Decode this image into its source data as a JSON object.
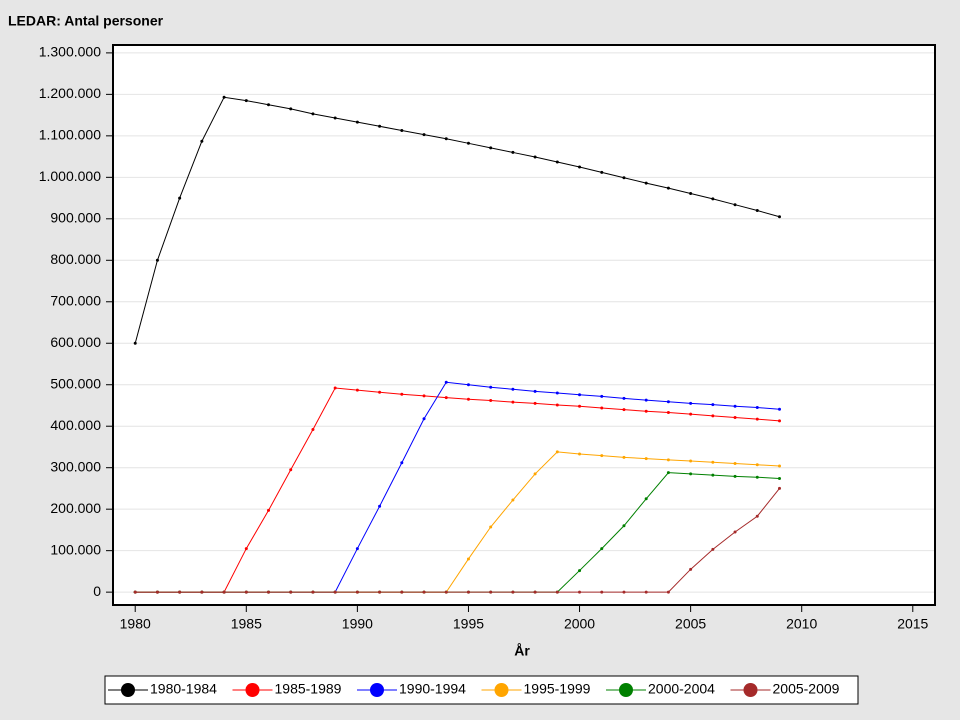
{
  "chart_data": {
    "type": "line",
    "title": "LEDAR: Antal personer",
    "x_label": "År",
    "x": [
      1980,
      1981,
      1982,
      1983,
      1984,
      1985,
      1986,
      1987,
      1988,
      1989,
      1990,
      1991,
      1992,
      1993,
      1994,
      1995,
      1996,
      1997,
      1998,
      1999,
      2000,
      2001,
      2002,
      2003,
      2004,
      2005,
      2006,
      2007,
      2008,
      2009
    ],
    "xlim": [
      1979,
      2016
    ],
    "xticks": [
      1980,
      1985,
      1990,
      1995,
      2000,
      2005,
      2010,
      2015
    ],
    "ylim": [
      -31000,
      1319000
    ],
    "yticks": [
      0,
      {
        "value": 100000,
        "label": "100.000"
      },
      {
        "value": 200000,
        "label": "200.000"
      },
      {
        "value": 300000,
        "label": "300.000"
      },
      {
        "value": 400000,
        "label": "400.000"
      },
      {
        "value": 500000,
        "label": "500.000"
      },
      {
        "value": 600000,
        "label": "600.000"
      },
      {
        "value": 700000,
        "label": "700.000"
      },
      {
        "value": 800000,
        "label": "800.000"
      },
      {
        "value": 900000,
        "label": "900.000"
      },
      {
        "value": 1000000,
        "label": "1.000.000"
      },
      {
        "value": 1100000,
        "label": "1.100.000"
      },
      {
        "value": 1200000,
        "label": "1.200.000"
      },
      {
        "value": 1300000,
        "label": "1.300.000"
      }
    ],
    "grid": true,
    "legend_position": "bottom",
    "series": [
      {
        "name": "1980-1984",
        "color": "#000000",
        "values": [
          600000,
          800000,
          950000,
          1087000,
          1193000,
          1185000,
          1175000,
          1165000,
          1153000,
          1143000,
          1133000,
          1123000,
          1113000,
          1103000,
          1093000,
          1082000,
          1071000,
          1060000,
          1049000,
          1037000,
          1025000,
          1012000,
          999000,
          986000,
          974000,
          961000,
          948000,
          934000,
          920000,
          905000
        ]
      },
      {
        "name": "1985-1989",
        "color": "#ff0000",
        "values": [
          0,
          0,
          0,
          0,
          0,
          105000,
          197000,
          295000,
          392000,
          492000,
          487000,
          482000,
          477000,
          473000,
          469000,
          465000,
          462000,
          458000,
          455000,
          451000,
          448000,
          444000,
          440000,
          436000,
          433000,
          429000,
          425000,
          421000,
          417000,
          413000
        ]
      },
      {
        "name": "1990-1994",
        "color": "#0000ff",
        "values": [
          0,
          0,
          0,
          0,
          0,
          0,
          0,
          0,
          0,
          0,
          105000,
          207000,
          312000,
          418000,
          506000,
          500000,
          494000,
          489000,
          484000,
          480000,
          476000,
          472000,
          467000,
          463000,
          459000,
          455000,
          452000,
          448000,
          445000,
          441000
        ]
      },
      {
        "name": "1995-1999",
        "color": "#ffa500",
        "values": [
          0,
          0,
          0,
          0,
          0,
          0,
          0,
          0,
          0,
          0,
          0,
          0,
          0,
          0,
          0,
          80000,
          157000,
          222000,
          285000,
          338000,
          333000,
          329000,
          325000,
          322000,
          319000,
          316000,
          313000,
          310000,
          307000,
          304000
        ]
      },
      {
        "name": "2000-2004",
        "color": "#008000",
        "values": [
          0,
          0,
          0,
          0,
          0,
          0,
          0,
          0,
          0,
          0,
          0,
          0,
          0,
          0,
          0,
          0,
          0,
          0,
          0,
          0,
          52000,
          105000,
          160000,
          225000,
          288000,
          285000,
          282000,
          279000,
          277000,
          274000
        ]
      },
      {
        "name": "2005-2009",
        "color": "#a52a2a",
        "values": [
          0,
          0,
          0,
          0,
          0,
          0,
          0,
          0,
          0,
          0,
          0,
          0,
          0,
          0,
          0,
          0,
          0,
          0,
          0,
          0,
          0,
          0,
          0,
          0,
          0,
          55000,
          103000,
          145000,
          183000,
          250000
        ]
      }
    ]
  }
}
